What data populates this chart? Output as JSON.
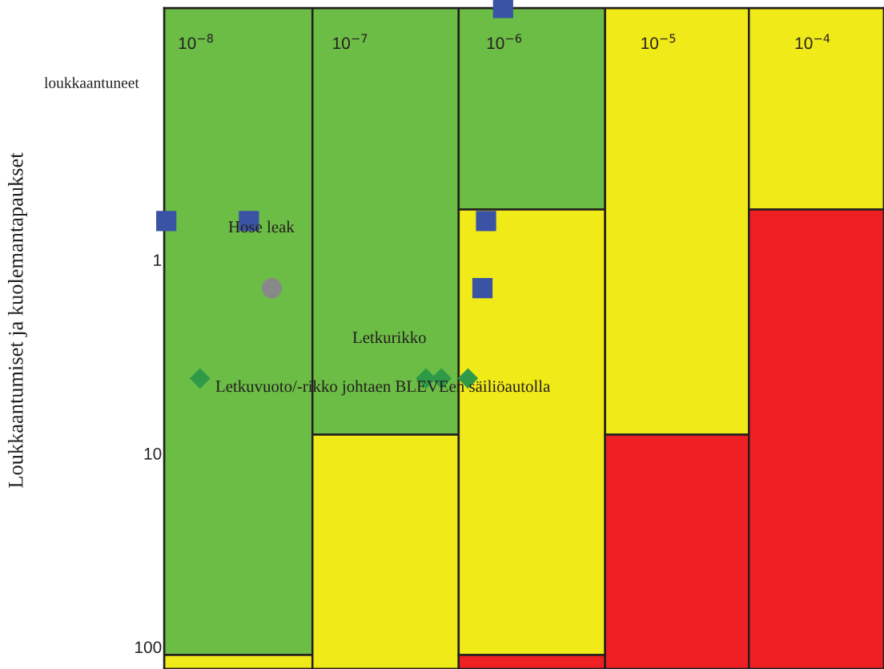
{
  "chart_data": {
    "type": "scatter",
    "log": "xy",
    "xlim": [
      6.2e-09,
      0.00029
    ],
    "ylim": [
      130,
      0.05
    ],
    "xticks": [
      {
        "value": 1e-08,
        "label": "10$^{−8}$"
      },
      {
        "value": 1e-07,
        "label": "10$^{−7}$"
      },
      {
        "value": 1e-06,
        "label": "10$^{−6}$"
      },
      {
        "value": 1e-05,
        "label": "10$^{−5}$"
      },
      {
        "value": 0.0001,
        "label": "10$^{−4}$"
      }
    ],
    "yticks": [
      1,
      10,
      100
    ],
    "series": [
      {
        "type": "bar",
        "color": "#6cbd45",
        "x": [
          1.9e-08,
          1.7e-07,
          1.5e-06
        ],
        "base": [
          0.05,
          0.05,
          0.05
        ],
        "values": [
          109.95,
          7.95,
          0.5
        ]
      },
      {
        "type": "bar",
        "color": "#f1ea19",
        "x": [
          1.9e-08,
          1.7e-07,
          1.5e-06,
          1.35e-05,
          0.00011
        ],
        "base": [
          110,
          8,
          0.55,
          0.05,
          0.05
        ],
        "values": [
          20,
          122,
          109.45,
          7.95,
          0.5
        ]
      },
      {
        "type": "bar",
        "color": "#ee2024",
        "x": [
          1.5e-06,
          1.35e-05,
          0.00011
        ],
        "base": [
          110,
          8,
          0.55
        ],
        "values": [
          20,
          122,
          129.45
        ]
      },
      {
        "color": "#3a53a4",
        "marker": "square",
        "x": [
          6.4e-09,
          2.2e-08,
          7.6e-07,
          7.2e-07,
          9.8e-07
        ],
        "values": [
          0.63,
          0.63,
          0.63,
          1.4,
          0.05
        ]
      },
      {
        "color": "#87888a",
        "marker": "circle",
        "x": [
          3.1e-08
        ],
        "values": [
          1.4
        ]
      },
      {
        "color": "#2e9a48",
        "marker": "diamond",
        "x": [
          1.06e-08,
          3.1e-07,
          3.9e-07,
          5.8e-07
        ],
        "values": [
          4.1,
          4.1,
          4.1,
          4.1
        ]
      }
    ],
    "annotations": [
      "Loukkaantumiset ja kuolemantapaukset",
      "loukkaantuneet",
      "Hose leak",
      "Letkurikko",
      "Letkuvuoto/-rikko johtaen BLEVEen säiliöautolla"
    ]
  }
}
